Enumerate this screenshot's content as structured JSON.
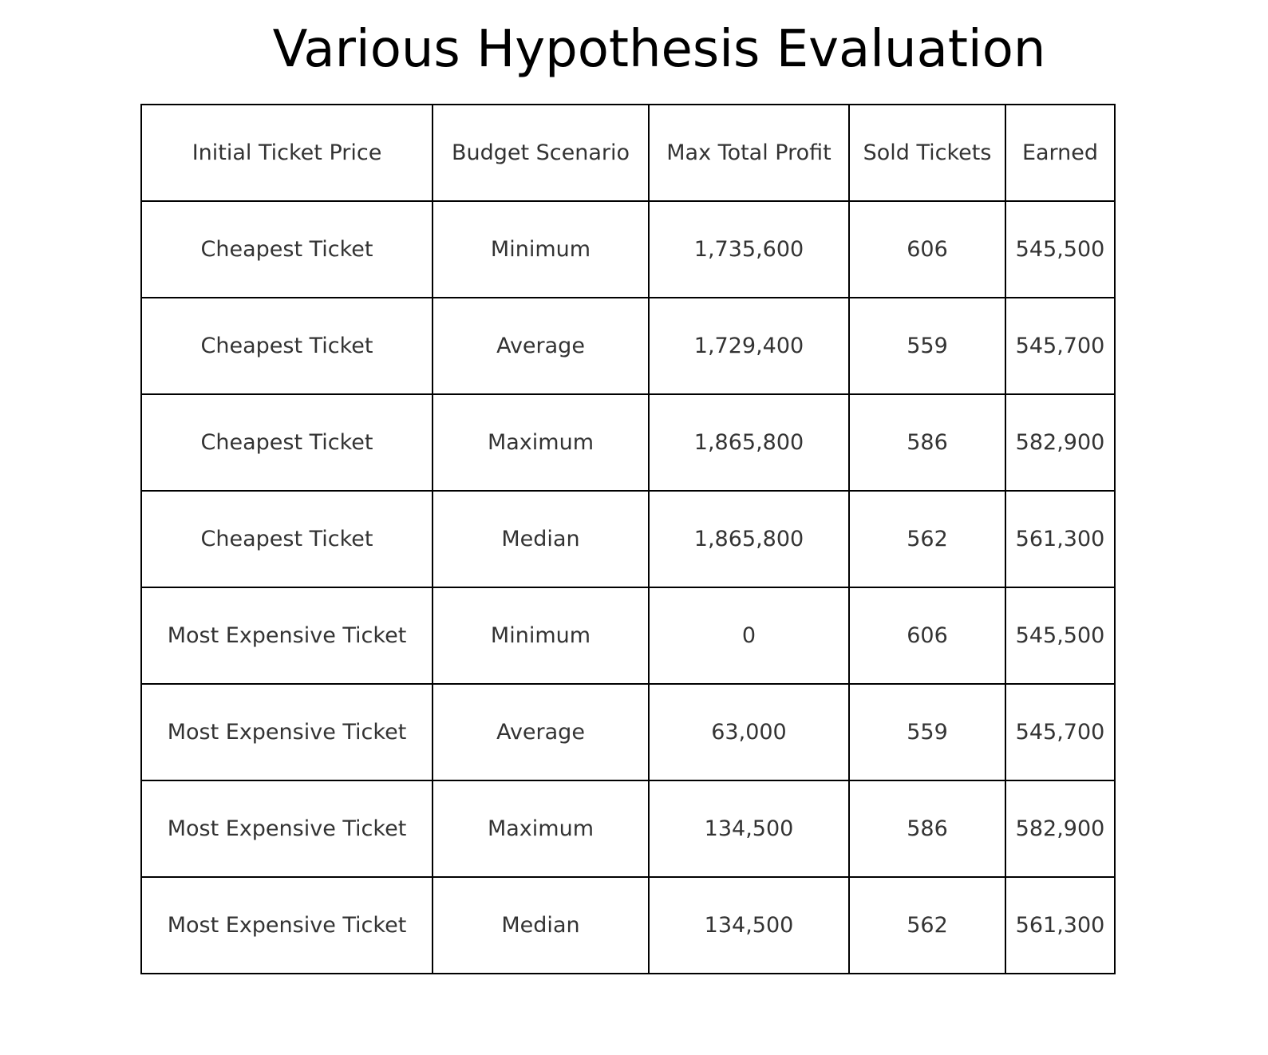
{
  "chart_data": {
    "type": "table",
    "title": "Various Hypothesis Evaluation",
    "columns": [
      "Initial Ticket Price",
      "Budget Scenario",
      "Max Total Profit",
      "Sold Tickets",
      "Earned"
    ],
    "rows": [
      [
        "Cheapest Ticket",
        "Minimum",
        "1,735,600",
        "606",
        "545,500"
      ],
      [
        "Cheapest Ticket",
        "Average",
        "1,729,400",
        "559",
        "545,700"
      ],
      [
        "Cheapest Ticket",
        "Maximum",
        "1,865,800",
        "586",
        "582,900"
      ],
      [
        "Cheapest Ticket",
        "Median",
        "1,865,800",
        "562",
        "561,300"
      ],
      [
        "Most Expensive Ticket",
        "Minimum",
        "0",
        "606",
        "545,500"
      ],
      [
        "Most Expensive Ticket",
        "Average",
        "63,000",
        "559",
        "545,700"
      ],
      [
        "Most Expensive Ticket",
        "Maximum",
        "134,500",
        "586",
        "582,900"
      ],
      [
        "Most Expensive Ticket",
        "Median",
        "134,500",
        "562",
        "561,300"
      ]
    ]
  }
}
